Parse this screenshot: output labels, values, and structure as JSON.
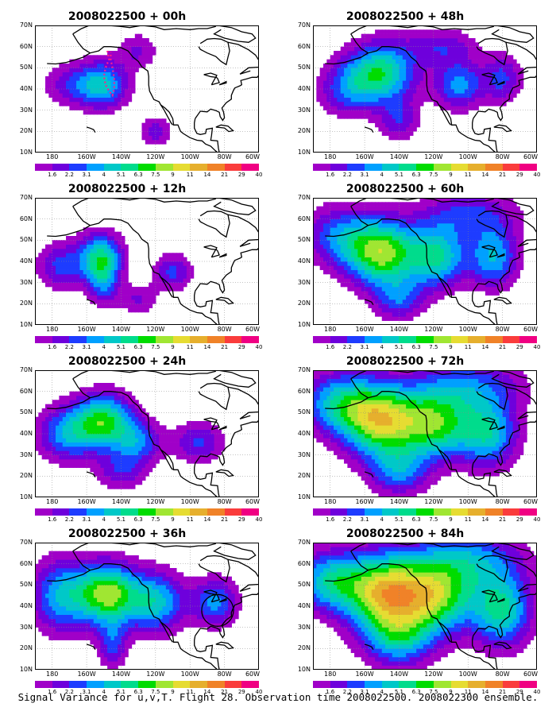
{
  "panels": [
    {
      "title": "2008022500 + 00h"
    },
    {
      "title": "2008022500 + 48h"
    },
    {
      "title": "2008022500 + 12h"
    },
    {
      "title": "2008022500 + 60h"
    },
    {
      "title": "2008022500 + 24h"
    },
    {
      "title": "2008022500 + 72h"
    },
    {
      "title": "2008022500 + 36h"
    },
    {
      "title": "2008022500 + 84h"
    }
  ],
  "lat_labels": [
    "70N",
    "60N",
    "50N",
    "40N",
    "30N",
    "20N",
    "10N"
  ],
  "lon_labels": [
    "180",
    "160W",
    "140W",
    "120W",
    "100W",
    "80W",
    "60W"
  ],
  "colorbar": {
    "labels": [
      "1.6",
      "2.2",
      "3.1",
      "4",
      "5.1",
      "6.3",
      "7.5",
      "9",
      "11",
      "14",
      "21",
      "29",
      "40"
    ],
    "colors": [
      "#a000c8",
      "#6e00dc",
      "#1e3cff",
      "#00a0ff",
      "#00c8c8",
      "#00dc8c",
      "#00dc00",
      "#a0e632",
      "#e6dc32",
      "#e6af2d",
      "#f08228",
      "#fa3c3c",
      "#f00082"
    ]
  },
  "footer": "Signal Variance for u,v,T. Flight 28. Observation time 2008022500. 2008022300 ensemble."
}
